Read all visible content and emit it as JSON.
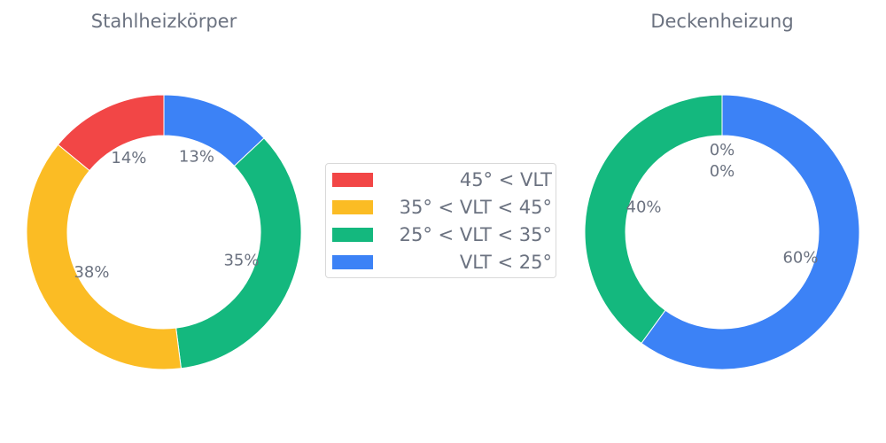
{
  "chart_data": [
    {
      "type": "pie",
      "style": "donut",
      "title": "Stahlheizkörper",
      "categories": [
        "VLT < 25°",
        "25° < VLT < 35°",
        "35° < VLT < 45°",
        "45° < VLT"
      ],
      "values": [
        13,
        35,
        38,
        14
      ],
      "labels": [
        "13%",
        "35%",
        "38%",
        "14%"
      ],
      "start": "top",
      "direction": "clockwise"
    },
    {
      "type": "pie",
      "style": "donut",
      "title": "Deckenheizung",
      "categories": [
        "VLT < 25°",
        "25° < VLT < 35°",
        "35° < VLT < 45°",
        "45° < VLT"
      ],
      "values": [
        60,
        40,
        0,
        0
      ],
      "labels": [
        "60%",
        "40%",
        "0%",
        "0%"
      ],
      "start": "top",
      "direction": "clockwise"
    }
  ],
  "legend": {
    "placement": "center",
    "items": [
      {
        "label": "45° < VLT",
        "color": "#f24646"
      },
      {
        "label": "35° < VLT < 45°",
        "color": "#fbbc24"
      },
      {
        "label": "25° < VLT < 35°",
        "color": "#14b87e"
      },
      {
        "label": "VLT < 25°",
        "color": "#3c82f6"
      }
    ]
  },
  "colors": [
    "#3c82f6",
    "#14b87e",
    "#fbbc24",
    "#f24646"
  ]
}
